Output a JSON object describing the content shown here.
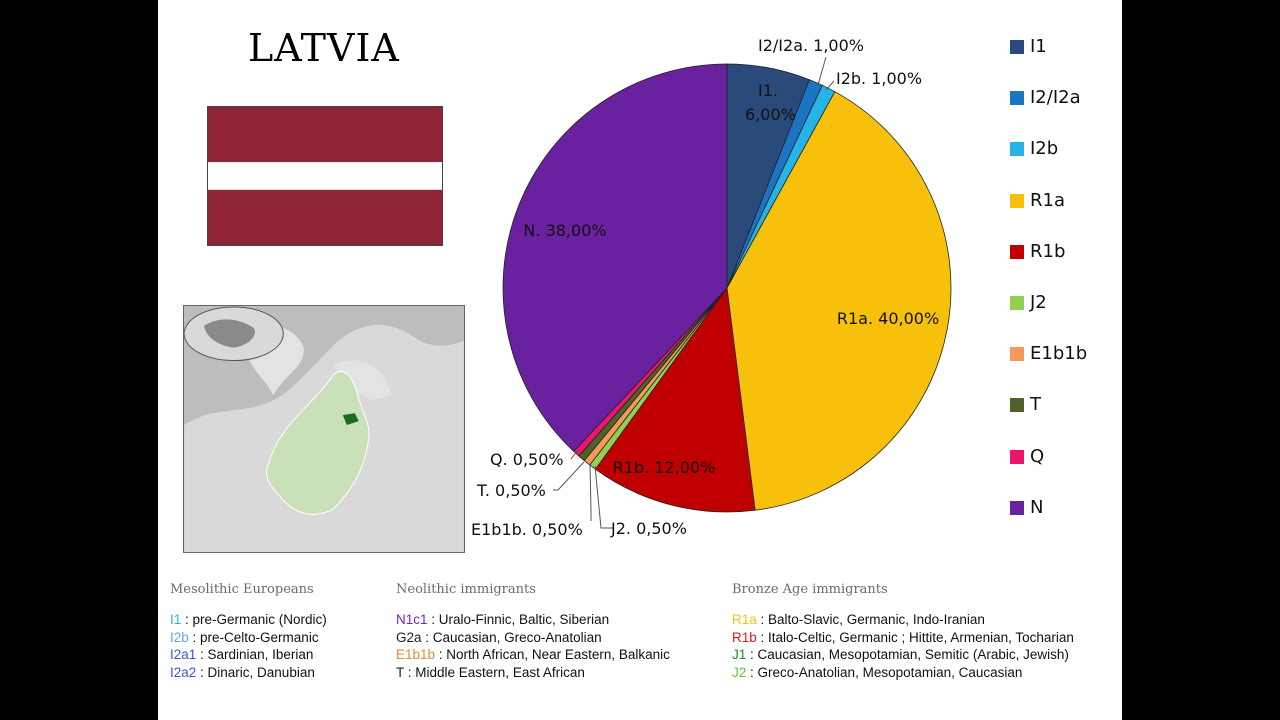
{
  "title": "LATVIA",
  "chart_data": {
    "type": "pie",
    "slices": [
      {
        "label": "I1",
        "value": 6.0,
        "text": "I1.\n6,00%",
        "color": "#2a4a7b"
      },
      {
        "label": "I2/I2a",
        "value": 1.0,
        "text": "I2/I2a. 1,00%",
        "color": "#1b75c4"
      },
      {
        "label": "I2b",
        "value": 1.0,
        "text": "I2b. 1,00%",
        "color": "#26b3e8"
      },
      {
        "label": "R1a",
        "value": 40.0,
        "text": "R1a. 40,00%",
        "color": "#f7c10b"
      },
      {
        "label": "R1b",
        "value": 12.0,
        "text": "R1b. 12,00%",
        "color": "#c00000"
      },
      {
        "label": "J2",
        "value": 0.5,
        "text": "J2. 0,50%",
        "color": "#92d050"
      },
      {
        "label": "E1b1b",
        "value": 0.5,
        "text": "E1b1b. 0,50%",
        "color": "#f4995a"
      },
      {
        "label": "T",
        "value": 0.5,
        "text": "T. 0,50%",
        "color": "#4f6228"
      },
      {
        "label": "Q",
        "value": 0.5,
        "text": "Q. 0,50%",
        "color": "#e9156f"
      },
      {
        "label": "N",
        "value": 38.0,
        "text": "N. 38,00%",
        "color": "#6a21a0"
      }
    ]
  },
  "legend": {
    "items": [
      "I1",
      "I2/I2a",
      "I2b",
      "R1a",
      "R1b",
      "J2",
      "E1b1b",
      "T",
      "Q",
      "N"
    ]
  },
  "notes": {
    "mesolithic": {
      "heading": "Mesolithic Europeans",
      "lines": [
        {
          "code": "I1",
          "text": " : pre-Germanic (Nordic)",
          "color": "#29b6c5"
        },
        {
          "code": "I2b",
          "text": " : pre-Celto-Germanic",
          "color": "#5aa9e6"
        },
        {
          "code": "I2a1",
          "text": " : Sardinian, Iberian",
          "color": "#3a55d6"
        },
        {
          "code": "I2a2",
          "text": " : Dinaric, Danubian",
          "color": "#3a55d6"
        }
      ]
    },
    "neolithic": {
      "heading": "Neolithic immigrants",
      "lines": [
        {
          "code": "N1c1",
          "text": " : Uralo-Finnic, Baltic, Siberian",
          "color": "#7a1fc9"
        },
        {
          "code": "G2a",
          "text": " : Caucasian, Greco-Anatolian",
          "color": "#222222"
        },
        {
          "code": "E1b1b",
          "text": " : North African, Near Eastern, Balkanic",
          "color": "#e8873a"
        },
        {
          "code": "T",
          "text": " : Middle Eastern, East African",
          "color": "#222222"
        }
      ]
    },
    "bronze": {
      "heading": "Bronze Age immigrants",
      "lines": [
        {
          "code": "R1a",
          "text": " : Balto-Slavic, Germanic, Indo-Iranian",
          "color": "#f0c419"
        },
        {
          "code": "R1b",
          "text": " : Italo-Celtic, Germanic ; Hittite, Armenian, Tocharian",
          "color": "#d81818"
        },
        {
          "code": "J1",
          "text": " : Caucasian, Mesopotamian, Semitic (Arabic, Jewish)",
          "color": "#1a8f2a"
        },
        {
          "code": "J2",
          "text": " : Greco-Anatolian, Mesopotamian, Caucasian",
          "color": "#5ac93a"
        }
      ]
    }
  }
}
